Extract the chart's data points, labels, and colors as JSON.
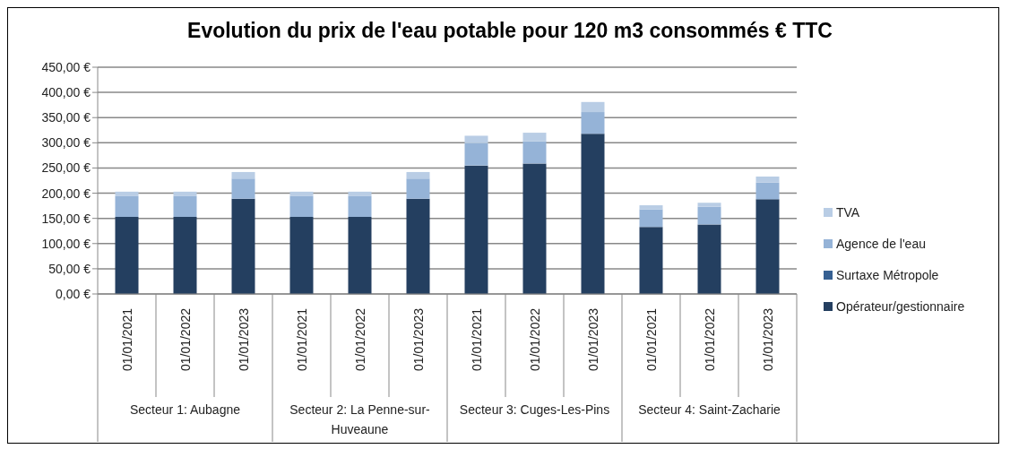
{
  "chart_data": {
    "type": "bar",
    "title": "Evolution du prix de l'eau potable pour 120 m3 consommés € TTC",
    "categories": [
      "01/01/2021",
      "01/01/2022",
      "01/01/2023",
      "01/01/2021",
      "01/01/2022",
      "01/01/2023",
      "01/01/2021",
      "01/01/2022",
      "01/01/2023",
      "01/01/2021",
      "01/01/2022",
      "01/01/2023"
    ],
    "annotations": [
      "Secteur 1: Aubagne",
      "Secteur 2: La Penne-sur-Huveaune",
      "Secteur 3: Cuges-Les-Pins",
      "Secteur 4: Saint-Zacharie"
    ],
    "stacked": true,
    "series": [
      {
        "name": "Opérateur/gestionnaire",
        "color": "#243f60",
        "values": [
          153,
          153,
          189,
          153,
          153,
          189,
          255,
          259,
          318,
          133,
          138,
          188
        ]
      },
      {
        "name": "Surtaxe Métropole",
        "color": "#366092",
        "values": [
          0,
          0,
          0,
          0,
          0,
          0,
          0,
          0,
          0,
          0,
          0,
          0
        ]
      },
      {
        "name": "Agence de l'eau",
        "color": "#95b3d7",
        "values": [
          41,
          41,
          40,
          41,
          41,
          40,
          44,
          44,
          43,
          35,
          35,
          33
        ]
      },
      {
        "name": "TVA",
        "color": "#b9cde5",
        "values": [
          9,
          9,
          13,
          9,
          9,
          13,
          15,
          17,
          20,
          8,
          8,
          12
        ]
      }
    ],
    "ylim": [
      0,
      450
    ],
    "yticks": [
      {
        "value": 0,
        "label": "0,00 €"
      },
      {
        "value": 50,
        "label": "50,00 €"
      },
      {
        "value": 100,
        "label": "100,00 €"
      },
      {
        "value": 150,
        "label": "150,00 €"
      },
      {
        "value": 200,
        "label": "200,00 €"
      },
      {
        "value": 250,
        "label": "250,00 €"
      },
      {
        "value": 300,
        "label": "300,00 €"
      },
      {
        "value": 350,
        "label": "350,00 €"
      },
      {
        "value": 400,
        "label": "400,00 €"
      },
      {
        "value": 450,
        "label": "450,00 €"
      }
    ],
    "grid": "y",
    "legend": "right"
  }
}
